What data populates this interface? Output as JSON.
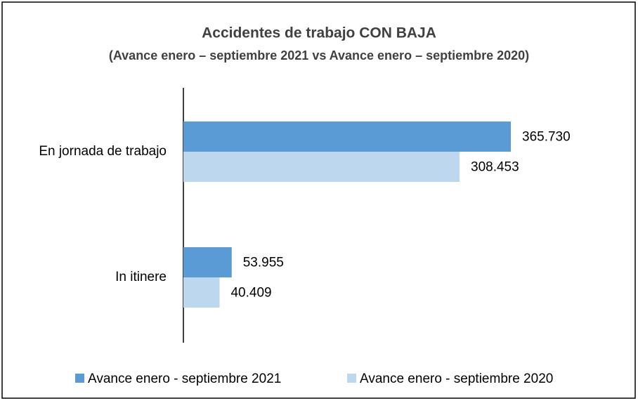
{
  "chart_data": {
    "type": "hbar",
    "title": "Accidentes de trabajo CON BAJA",
    "subtitle": "(Avance enero – septiembre 2021 vs Avance enero – septiembre 2020)",
    "categories": [
      "En jornada de trabajo",
      "In itinere"
    ],
    "series": [
      {
        "name": "Avance enero - septiembre 2021",
        "color": "#5b9bd5",
        "values": [
          365730,
          53955
        ],
        "value_labels": [
          "365.730",
          "53.955"
        ]
      },
      {
        "name": "Avance enero - septiembre 2020",
        "color": "#bdd7ee",
        "values": [
          308453,
          40409
        ],
        "value_labels": [
          "308.453",
          "40.409"
        ]
      }
    ],
    "legend": "bottom"
  }
}
